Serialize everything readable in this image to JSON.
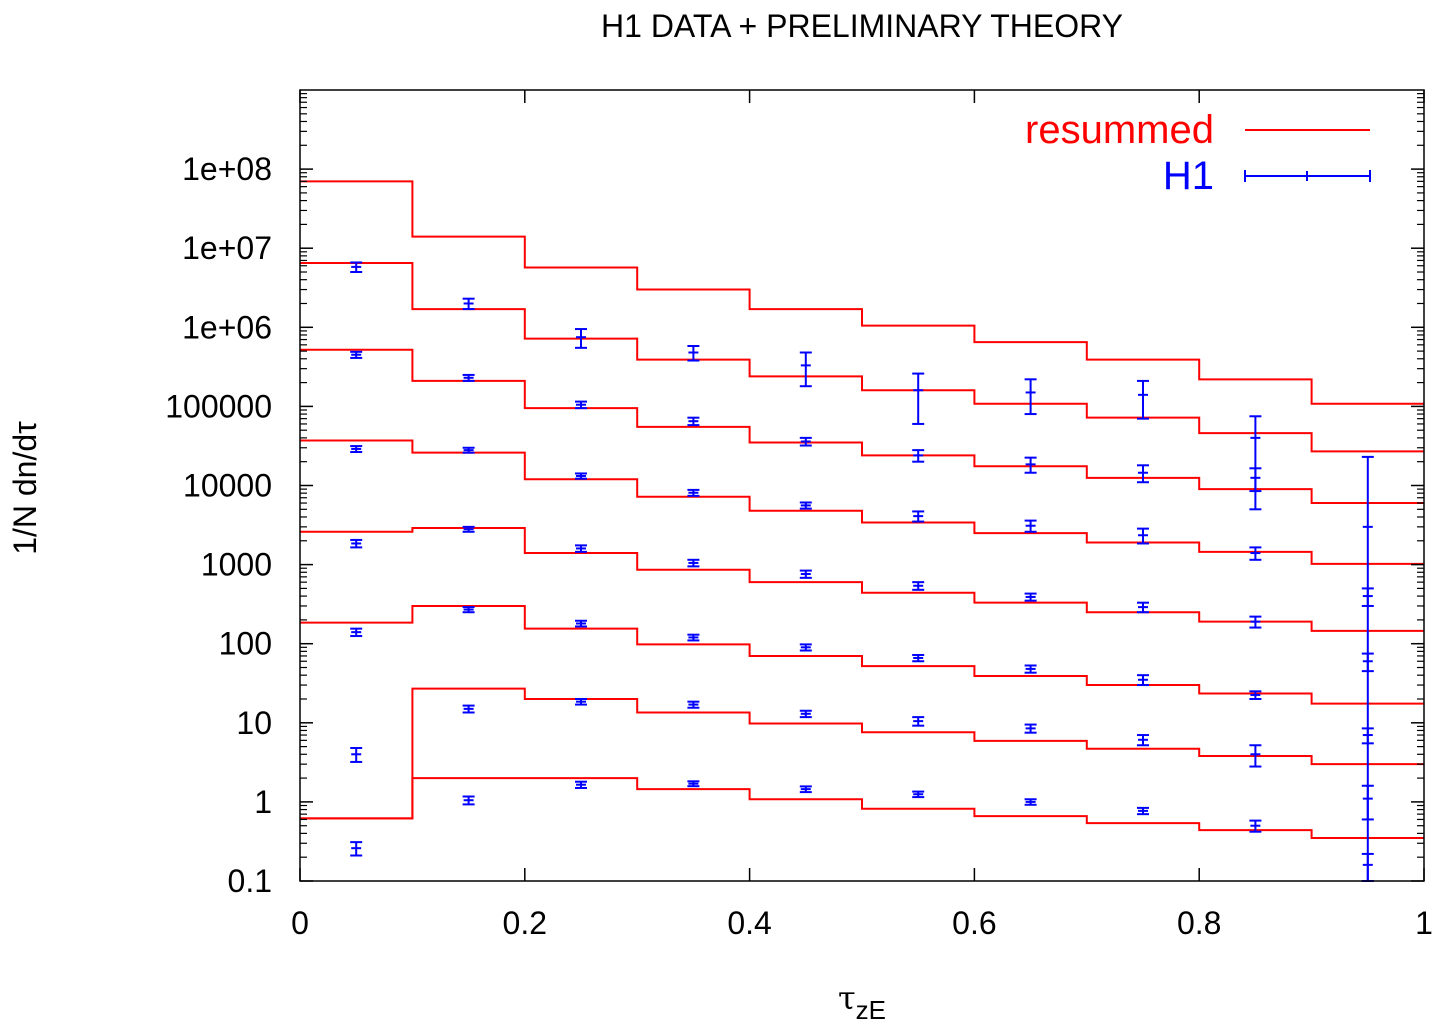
{
  "chart_data": {
    "type": "line",
    "title": "H1 DATA + PRELIMINARY THEORY",
    "xlabel": "τ",
    "xlabel_sub": "zE",
    "ylabel": "1/N dn/dτ",
    "xlim": [
      0,
      1
    ],
    "ylim": [
      0.1,
      1000000000
    ],
    "yscale": "log",
    "grid": false,
    "legend_position": "top-right",
    "x_ticks": [
      0,
      0.2,
      0.4,
      0.6,
      0.8,
      1
    ],
    "x_tick_labels": [
      "0",
      "0.2",
      "0.4",
      "0.6",
      "0.8",
      "1"
    ],
    "y_ticks": [
      0.1,
      1,
      10,
      100,
      1000,
      10000,
      100000,
      1000000,
      10000000,
      100000000
    ],
    "y_tick_labels": [
      "0.1",
      "1",
      "10",
      "100",
      "1000",
      "10000",
      "100000",
      "1e+06",
      "1e+07",
      "1e+08"
    ],
    "colors": {
      "resummed": "#ff0000",
      "H1": "#0000ff"
    },
    "bin_edges": [
      0,
      0.1,
      0.2,
      0.3,
      0.4,
      0.5,
      0.6,
      0.7,
      0.8,
      0.9,
      1.0
    ],
    "bin_centers": [
      0.05,
      0.15,
      0.25,
      0.35,
      0.45,
      0.55,
      0.65,
      0.75,
      0.85,
      0.95
    ],
    "series": [
      {
        "name": "resummed",
        "style": "histogram",
        "curves": [
          [
            70000000,
            14000000,
            5700000,
            3000000,
            1700000,
            1050000,
            650000,
            390000,
            220000,
            108000
          ],
          [
            6500000,
            1700000,
            720000,
            390000,
            240000,
            160000,
            108000,
            72000,
            46000,
            27000
          ],
          [
            520000,
            210000,
            95000,
            55000,
            35000,
            24000,
            17500,
            12500,
            9000,
            6000
          ],
          [
            37000,
            26000,
            12000,
            7200,
            4800,
            3400,
            2500,
            1900,
            1450,
            1020
          ],
          [
            2600,
            2900,
            1400,
            860,
            600,
            440,
            330,
            250,
            190,
            145
          ],
          [
            185,
            300,
            155,
            98,
            70,
            52,
            39,
            30,
            23.5,
            17.5
          ],
          [
            0.62,
            27,
            20,
            13.5,
            9.8,
            7.6,
            5.9,
            4.7,
            3.8,
            3.0
          ],
          [
            0.62,
            2.0,
            2.0,
            1.45,
            1.08,
            0.82,
            0.66,
            0.54,
            0.44,
            0.35
          ]
        ]
      },
      {
        "name": "H1",
        "style": "errorbars",
        "curves": [
          [
            null,
            null,
            null,
            null,
            null,
            160000,
            150000,
            140000,
            null,
            null
          ],
          [
            5800000,
            2000000,
            750000,
            480000,
            330000,
            null,
            null,
            null,
            40000,
            3000
          ],
          [
            450000,
            230000,
            105000,
            65000,
            36000,
            24000,
            18500,
            14500,
            12500,
            400
          ],
          [
            29000,
            28000,
            13200,
            8100,
            5600,
            4100,
            3100,
            2350,
            1400,
            60
          ],
          [
            1850,
            2800,
            1600,
            1050,
            760,
            540,
            390,
            290,
            190,
            7
          ],
          [
            140,
            270,
            180,
            120,
            90,
            66,
            48,
            35,
            22.5,
            1.1
          ],
          [
            4.0,
            15,
            18.5,
            17,
            13,
            10.5,
            8.5,
            6.1,
            4.0,
            0.16
          ],
          [
            0.26,
            1.05,
            1.65,
            1.7,
            1.45,
            1.25,
            1.0,
            0.77,
            0.5,
            null
          ]
        ],
        "errors": [
          [
            null,
            null,
            null,
            null,
            null,
            100000,
            70000,
            70000,
            null,
            null
          ],
          [
            800000,
            300000,
            200000,
            100000,
            150000,
            null,
            null,
            null,
            35000,
            20000
          ],
          [
            40000,
            20000,
            10000,
            7000,
            4000,
            4000,
            4000,
            3500,
            4000,
            100
          ],
          [
            2500,
            2000,
            1000,
            700,
            500,
            600,
            500,
            500,
            250,
            15
          ],
          [
            200,
            200,
            150,
            100,
            80,
            60,
            40,
            40,
            30,
            1.5
          ],
          [
            15,
            20,
            15,
            10,
            8,
            6,
            5,
            5,
            2.5,
            0.5
          ],
          [
            0.8,
            1.5,
            1.5,
            1.5,
            1.2,
            1.3,
            1.0,
            0.9,
            1.2,
            0.06
          ],
          [
            0.05,
            0.12,
            0.15,
            0.12,
            0.12,
            0.1,
            0.08,
            0.07,
            0.08,
            null
          ]
        ]
      }
    ]
  }
}
